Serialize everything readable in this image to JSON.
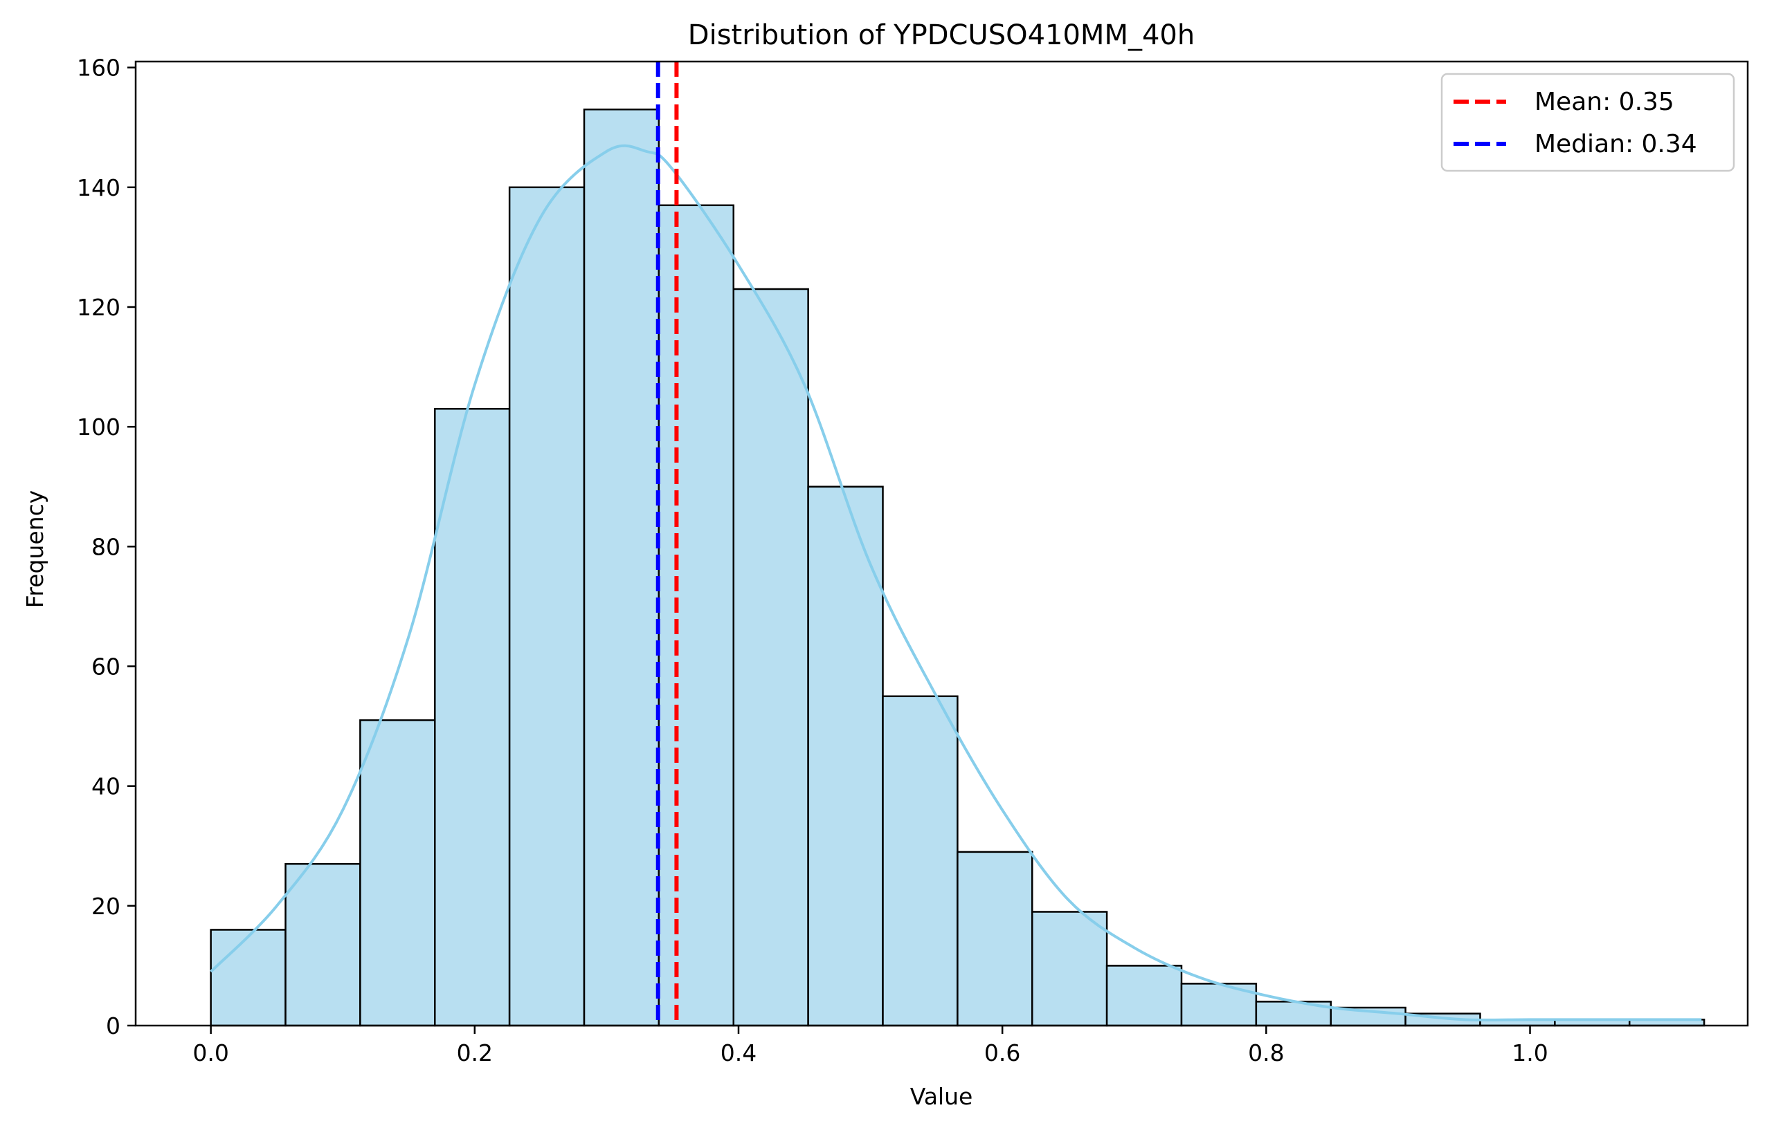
{
  "chart_data": {
    "type": "bar",
    "title": "Distribution of YPDCUSO410MM_40h",
    "xlabel": "Value",
    "ylabel": "Frequency",
    "xlim": [
      -0.057,
      1.165
    ],
    "ylim": [
      0,
      161
    ],
    "xticks": [
      0.0,
      0.2,
      0.4,
      0.6,
      0.8,
      1.0
    ],
    "xtick_labels": [
      "0.0",
      "0.2",
      "0.4",
      "0.6",
      "0.8",
      "1.0"
    ],
    "yticks": [
      0,
      20,
      40,
      60,
      80,
      100,
      120,
      140,
      160
    ],
    "ytick_labels": [
      "0",
      "20",
      "40",
      "60",
      "80",
      "100",
      "120",
      "140",
      "160"
    ],
    "bins": {
      "start": 0.0,
      "width": 0.0566,
      "counts": [
        16,
        27,
        51,
        103,
        140,
        153,
        137,
        123,
        90,
        55,
        29,
        19,
        10,
        7,
        4,
        3,
        2,
        1,
        1,
        1
      ]
    },
    "kde": {
      "x": [
        0.0,
        0.05,
        0.1,
        0.15,
        0.2,
        0.25,
        0.3,
        0.33,
        0.35,
        0.4,
        0.45,
        0.5,
        0.55,
        0.6,
        0.65,
        0.7,
        0.75,
        0.8,
        0.85,
        0.9,
        0.95,
        1.0,
        1.05,
        1.13
      ],
      "y": [
        9,
        20,
        36,
        65,
        107,
        135,
        146,
        146,
        143,
        127,
        107,
        77,
        55,
        36,
        21,
        13,
        8,
        5,
        3,
        2,
        1,
        1,
        1,
        1
      ]
    },
    "vlines": [
      {
        "name": "Mean: 0.35",
        "x": 0.353,
        "color": "#ff0000",
        "style": "dashed"
      },
      {
        "name": "Median: 0.34",
        "x": 0.339,
        "color": "#0000ff",
        "style": "dashed"
      }
    ],
    "legend": {
      "placement": "top-right",
      "entries": [
        "Mean: 0.35",
        "Median: 0.34"
      ]
    },
    "grid": false,
    "colors": {
      "bar_fill": "#b8dff1",
      "bar_edge": "#000000",
      "kde_line": "#87ceeb",
      "mean": "#ff0000",
      "median": "#0000ff"
    }
  }
}
